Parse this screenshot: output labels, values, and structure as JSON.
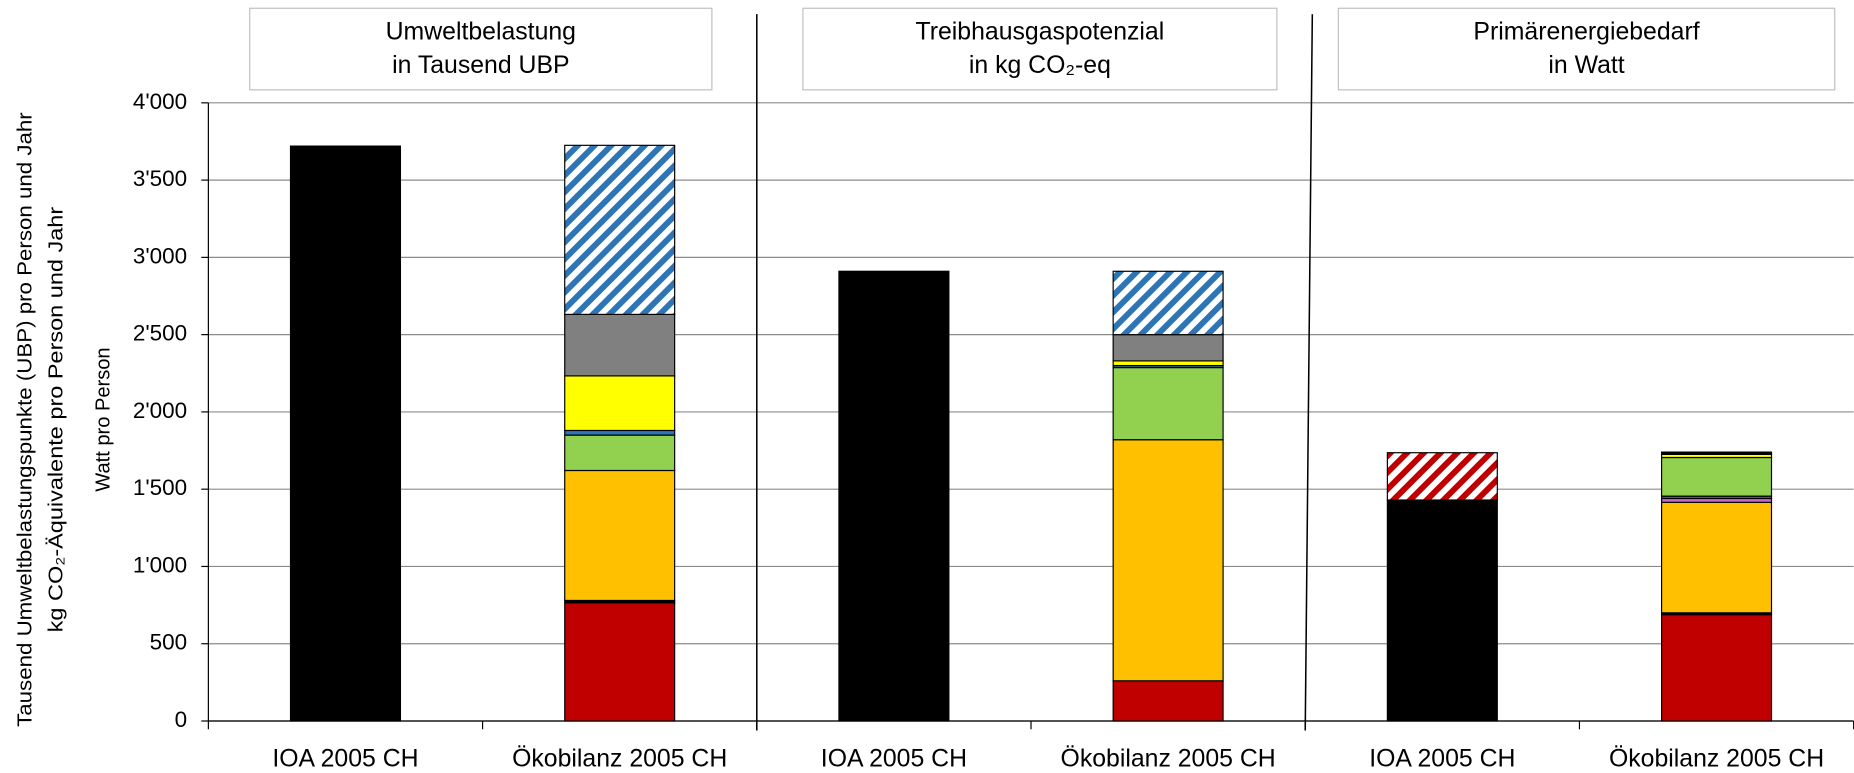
{
  "chart_data": {
    "type": "bar",
    "stacked": true,
    "grid": true,
    "panels": [
      {
        "title": [
          "Umweltbelastung",
          "in Tausend UBP"
        ]
      },
      {
        "title": [
          "Treibhausgaspotenzial",
          "in kg CO₂-eq"
        ]
      },
      {
        "title": [
          "Primärenergiebedarf",
          "in Watt"
        ]
      }
    ],
    "y_label": [
      "Tausend Umweltbelastungspunkte (UBP) pro Person und Jahr",
      "kg CO₂-Äquivalente pro Person und Jahr",
      "Watt pro Person"
    ],
    "categories": [
      "IOA 2005 CH",
      "Ökobilanz 2005 CH",
      "IOA 2005 CH",
      "Ökobilanz 2005 CH",
      "IOA 2005 CH",
      "Ökobilanz 2005 CH"
    ],
    "ylim": [
      0,
      4000
    ],
    "yticks": [
      0,
      500,
      {
        "value": 1000,
        "label": "1'000"
      },
      {
        "value": 1500,
        "label": "1'500"
      },
      {
        "value": 2000,
        "label": "2'000"
      },
      {
        "value": 2500,
        "label": "2'500"
      },
      {
        "value": 3000,
        "label": "3'000"
      },
      {
        "value": 3500,
        "label": "3'500"
      },
      {
        "value": 4000,
        "label": "4'000"
      }
    ],
    "series": [
      {
        "color": "#000000",
        "values": [
          3720,
          null,
          2910,
          null,
          1430,
          null
        ]
      },
      {
        "color": "#c00000",
        "values": [
          null,
          765,
          null,
          260,
          null,
          688
        ]
      },
      {
        "color": "#000000",
        "values": [
          null,
          15,
          null,
          null,
          null,
          12
        ]
      },
      {
        "color": "#ffc000",
        "values": [
          null,
          841,
          null,
          1560,
          null,
          715
        ]
      },
      {
        "color": "#cc66cc",
        "values": [
          null,
          null,
          null,
          null,
          null,
          25
        ]
      },
      {
        "color": "#2e75b6",
        "values": [
          null,
          null,
          null,
          null,
          null,
          15
        ]
      },
      {
        "color": "#92d050",
        "values": [
          null,
          229,
          null,
          467,
          null,
          250
        ]
      },
      {
        "color": "#2e75b6",
        "values": [
          null,
          30,
          null,
          13,
          null,
          null
        ]
      },
      {
        "color": "#ffff00",
        "values": [
          null,
          353,
          null,
          30,
          null,
          20
        ]
      },
      {
        "color": "#808080",
        "values": [
          null,
          398,
          null,
          170,
          null,
          null
        ]
      },
      {
        "color": "#000000",
        "values": [
          null,
          null,
          null,
          null,
          null,
          15
        ]
      },
      {
        "color": "#2e75b6",
        "hatch": true,
        "values": [
          null,
          1094,
          null,
          410,
          null,
          null
        ]
      },
      {
        "color": "#c00000",
        "hatch": true,
        "values": [
          null,
          null,
          null,
          null,
          306,
          null
        ]
      }
    ]
  }
}
